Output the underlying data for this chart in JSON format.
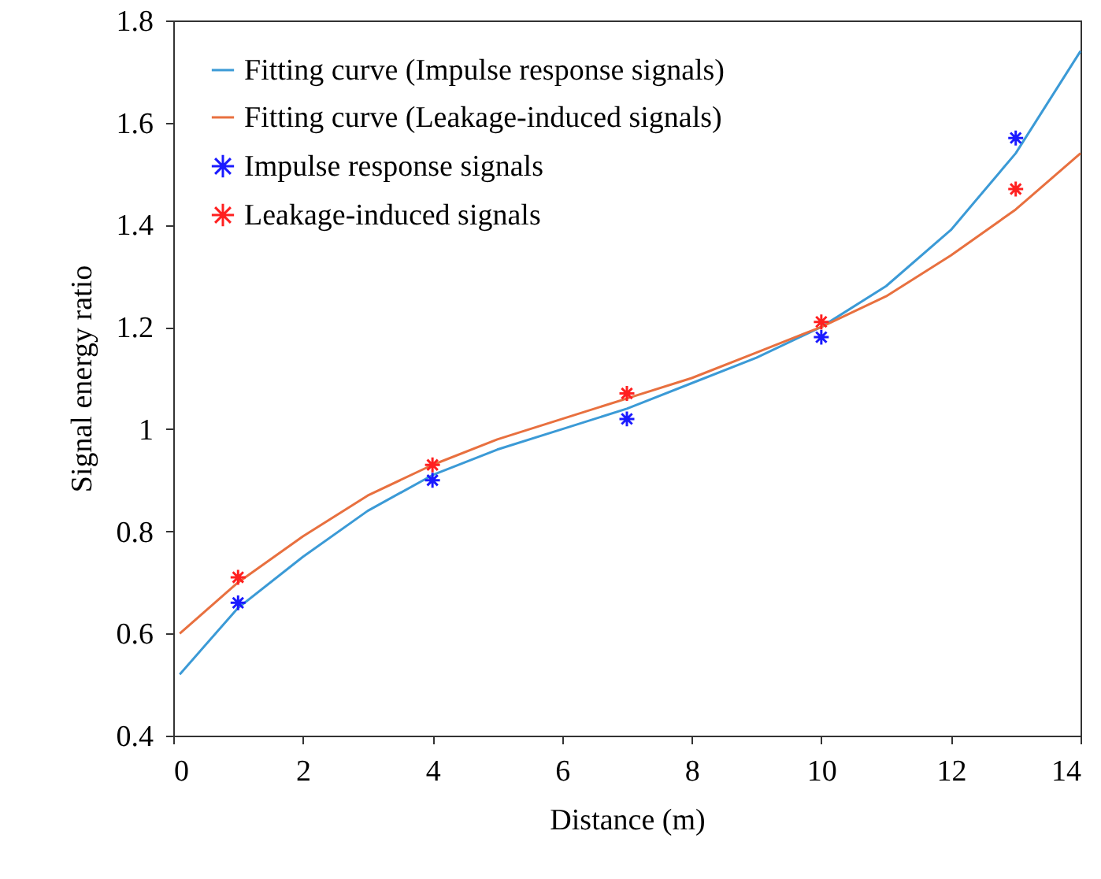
{
  "chart_data": {
    "type": "line",
    "xlabel": "Distance (m)",
    "ylabel": "Signal energy ratio",
    "xlim": [
      0,
      14
    ],
    "ylim": [
      0.4,
      1.8
    ],
    "xticks": [
      0,
      2,
      4,
      6,
      8,
      10,
      12,
      14
    ],
    "yticks": [
      0.4,
      0.6,
      0.8,
      1,
      1.2,
      1.4,
      1.6,
      1.8
    ],
    "grid": false,
    "legend": "top left",
    "series": [
      {
        "name": "Fitting curve (Impulse response signals)",
        "color": "#3b9ad6",
        "marker": "none",
        "line_style": "solid",
        "x": [
          0.1,
          1,
          2,
          3,
          4,
          5,
          6,
          7,
          8,
          9,
          10,
          11,
          12,
          13,
          14
        ],
        "values": [
          0.52,
          0.65,
          0.75,
          0.84,
          0.91,
          0.96,
          1.0,
          1.04,
          1.09,
          1.14,
          1.2,
          1.28,
          1.39,
          1.54,
          1.74
        ]
      },
      {
        "name": "Fitting curve (Leakage-induced signals)",
        "color": "#e8703f",
        "marker": "none",
        "line_style": "solid",
        "x": [
          0.1,
          1,
          2,
          3,
          4,
          5,
          6,
          7,
          8,
          9,
          10,
          11,
          12,
          13,
          14
        ],
        "values": [
          0.6,
          0.7,
          0.79,
          0.87,
          0.93,
          0.98,
          1.02,
          1.06,
          1.1,
          1.15,
          1.2,
          1.26,
          1.34,
          1.43,
          1.54
        ]
      },
      {
        "name": "Impulse response signals",
        "type": "scatter",
        "color": "#1a1aff",
        "marker": "cross",
        "x": [
          1,
          4,
          7,
          10,
          13
        ],
        "values": [
          0.66,
          0.9,
          1.02,
          1.18,
          1.57
        ]
      },
      {
        "name": "Leakage-induced signals",
        "type": "scatter",
        "color": "#ff2020",
        "marker": "cross",
        "x": [
          1,
          4,
          7,
          10,
          13
        ],
        "values": [
          0.71,
          0.93,
          1.07,
          1.21,
          1.47
        ]
      }
    ]
  }
}
